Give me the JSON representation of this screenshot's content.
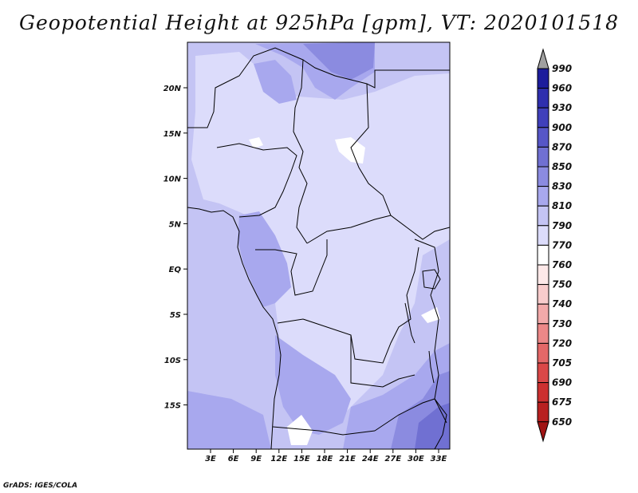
{
  "title": "Geopotential Height at 925hPa [gpm], VT: 2020101518",
  "footer": "GrADS: IGES/COLA",
  "map": {
    "lat_labels": [
      "20N",
      "15N",
      "10N",
      "5N",
      "EQ",
      "5S",
      "10S",
      "15S"
    ],
    "lon_labels": [
      "3E",
      "6E",
      "9E",
      "12E",
      "15E",
      "18E",
      "21E",
      "24E",
      "27E",
      "30E",
      "33E"
    ]
  },
  "colorbar": {
    "levels": [
      "990",
      "960",
      "930",
      "900",
      "870",
      "850",
      "830",
      "810",
      "790",
      "770",
      "760",
      "750",
      "740",
      "730",
      "720",
      "705",
      "690",
      "675",
      "650"
    ],
    "colors": {
      "top_arrow": "#a0a0a0",
      "above_990": "#0a0a90",
      "b960_990": "#1c1c9c",
      "b930_960": "#2f2fae",
      "b900_930": "#4040bb",
      "b870_900": "#5656c7",
      "b850_870": "#7070d2",
      "b830_850": "#8b8be0",
      "b810_830": "#a8a8ee",
      "b790_810": "#c4c4f4",
      "b770_790": "#dcdcfb",
      "b760_770": "#ffffff",
      "b750_760": "#fde8e8",
      "b740_750": "#f8cccc",
      "b730_740": "#f2aaaa",
      "b720_730": "#ec8888",
      "b705_720": "#e46868",
      "b690_705": "#da4848",
      "b675_690": "#cc3030",
      "b650_675": "#b82020",
      "bottom_arrow": "#a01414"
    }
  },
  "map_colors": {
    "c770": "#dcdcfb",
    "c790": "#c4c4f4",
    "c810": "#a8a8ee",
    "c830": "#8b8be0",
    "c850": "#7070d2",
    "c760": "#ffffff"
  }
}
